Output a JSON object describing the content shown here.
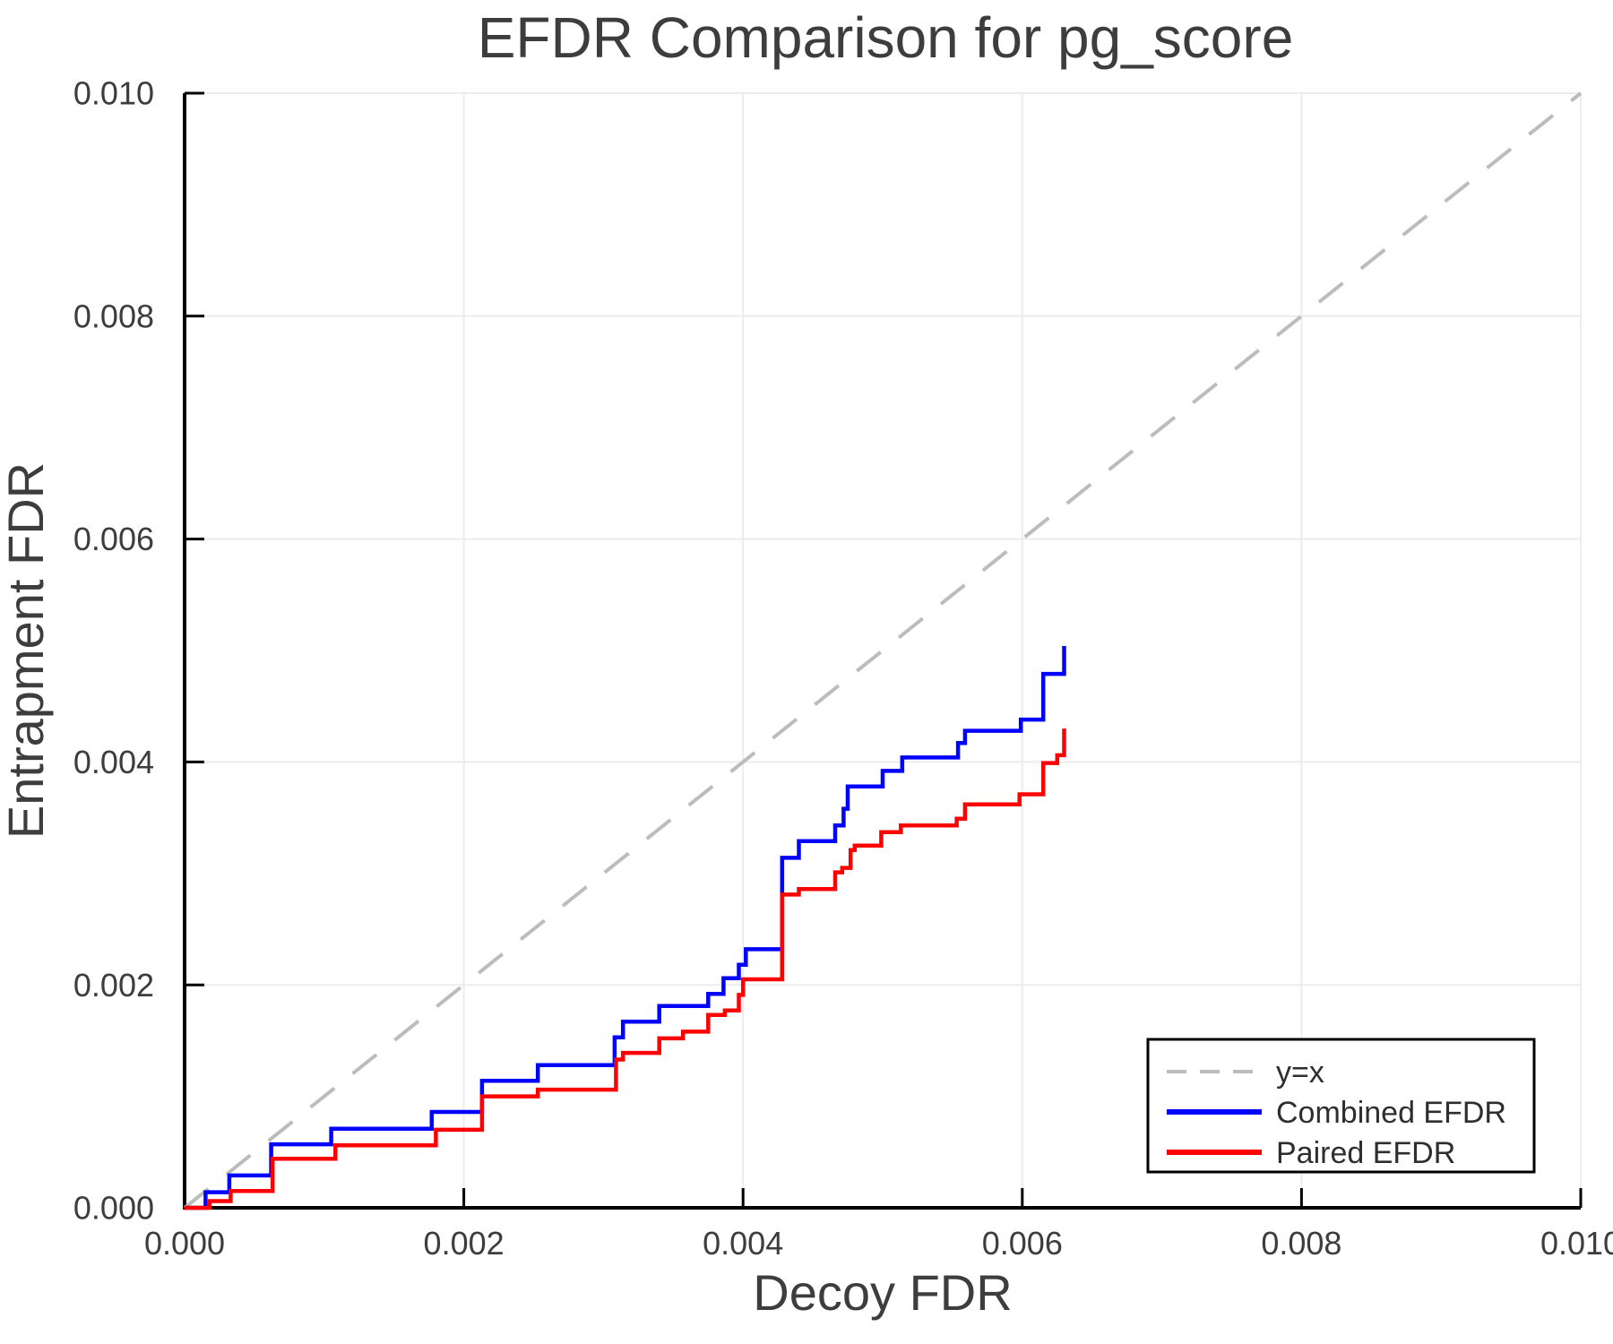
{
  "window": {
    "background": "#ffffff"
  },
  "chart_data": {
    "type": "line",
    "title": "EFDR Comparison for pg_score",
    "xlabel": "Decoy FDR",
    "ylabel": "Entrapment FDR",
    "xlim": [
      0,
      0.01
    ],
    "ylim": [
      0,
      0.01
    ],
    "xticks": [
      "0.000",
      "0.002",
      "0.004",
      "0.006",
      "0.008",
      "0.010"
    ],
    "yticks": [
      "0.000",
      "0.002",
      "0.004",
      "0.006",
      "0.008",
      "0.010"
    ],
    "grid": true,
    "text_color": "#3d3d3d",
    "gridline_color": "#ececec",
    "axis_color": "#000000",
    "legend": {
      "position": "bottom-right",
      "background": "#ffffff",
      "border_color": "#000000"
    },
    "series": [
      {
        "name": "y=x",
        "kind": "reference-line",
        "style": "dashed",
        "color": "#bcbcbc",
        "points": [
          [
            0,
            0
          ],
          [
            0.01,
            0.01
          ]
        ]
      },
      {
        "name": "Combined EFDR",
        "kind": "step",
        "style": "solid",
        "color": "#0000ff",
        "start": [
          0,
          0
        ],
        "steps": [
          [
            0.00015,
            0.00014
          ],
          [
            0.00032,
            0.00029
          ],
          [
            0.00062,
            0.00057
          ],
          [
            0.00105,
            0.00071
          ],
          [
            0.00177,
            0.00086
          ],
          [
            0.00213,
            0.00114
          ],
          [
            0.00253,
            0.00128
          ],
          [
            0.00308,
            0.00153
          ],
          [
            0.00314,
            0.00167
          ],
          [
            0.0034,
            0.00181
          ],
          [
            0.00375,
            0.00192
          ],
          [
            0.00386,
            0.00206
          ],
          [
            0.00397,
            0.00218
          ],
          [
            0.00402,
            0.00232
          ],
          [
            0.00428,
            0.00314
          ],
          [
            0.0044,
            0.00329
          ],
          [
            0.00466,
            0.00343
          ],
          [
            0.00472,
            0.00358
          ],
          [
            0.00475,
            0.00378
          ],
          [
            0.005,
            0.00392
          ],
          [
            0.00514,
            0.00404
          ],
          [
            0.00554,
            0.00417
          ],
          [
            0.00559,
            0.00428
          ],
          [
            0.00599,
            0.00438
          ],
          [
            0.00615,
            0.00479
          ],
          [
            0.0063,
            0.00504
          ]
        ]
      },
      {
        "name": "Paired EFDR",
        "kind": "step",
        "style": "solid",
        "color": "#ff0000",
        "start": [
          0,
          0
        ],
        "steps": [
          [
            0.00018,
            6e-05
          ],
          [
            0.00033,
            0.00015
          ],
          [
            0.00063,
            0.00044
          ],
          [
            0.00108,
            0.00056
          ],
          [
            0.0018,
            0.0007
          ],
          [
            0.00213,
            0.001
          ],
          [
            0.00253,
            0.00106
          ],
          [
            0.00309,
            0.00133
          ],
          [
            0.00314,
            0.00139
          ],
          [
            0.0034,
            0.00152
          ],
          [
            0.00357,
            0.00158
          ],
          [
            0.00375,
            0.00173
          ],
          [
            0.00387,
            0.00177
          ],
          [
            0.00397,
            0.00191
          ],
          [
            0.004,
            0.00205
          ],
          [
            0.00428,
            0.00281
          ],
          [
            0.0044,
            0.00286
          ],
          [
            0.00466,
            0.00301
          ],
          [
            0.00471,
            0.00305
          ],
          [
            0.00477,
            0.00321
          ],
          [
            0.0048,
            0.00325
          ],
          [
            0.00499,
            0.00337
          ],
          [
            0.00513,
            0.00343
          ],
          [
            0.00553,
            0.00349
          ],
          [
            0.00559,
            0.00362
          ],
          [
            0.00598,
            0.00371
          ],
          [
            0.00615,
            0.00399
          ],
          [
            0.00625,
            0.00406
          ],
          [
            0.0063,
            0.0043
          ]
        ]
      }
    ]
  }
}
